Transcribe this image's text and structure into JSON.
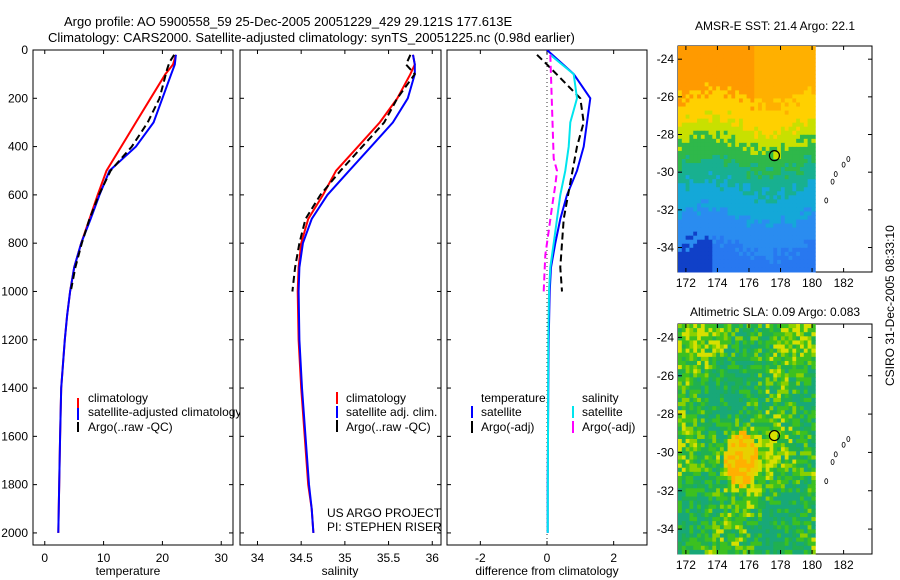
{
  "header": {
    "line1": "Argo profile: AO 5900558_59 25-Dec-2005 20051229_429 29.121S 177.613E",
    "line2": "Climatology: CARS2000. Satellite-adjusted climatology: synTS_20051225.nc (0.98d earlier)"
  },
  "stamp": "CSIRO 31-Dec-2005 08:33:10",
  "colors": {
    "climatology": "#ff0000",
    "satellite": "#0000ff",
    "argo": "#000000",
    "salinity_satellite": "#00e5ee",
    "salinity_argo": "#ff00ff"
  },
  "chart_data": [
    {
      "type": "line",
      "panel": "temperature",
      "xlabel": "temperature",
      "ylabel": "",
      "xlim": [
        -2,
        32
      ],
      "ylim": [
        2050,
        0
      ],
      "y_reversed": true,
      "xticks": [
        0,
        10,
        20,
        30
      ],
      "yticks": [
        0,
        200,
        400,
        600,
        800,
        1000,
        1200,
        1400,
        1600,
        1800,
        2000
      ],
      "legend": [
        "climatology",
        "satellite-adjusted climatology",
        "Argo(..raw -QC)"
      ],
      "legend_placement": "lower-right",
      "series": [
        {
          "name": "climatology",
          "color": "#ff0000",
          "style": "solid",
          "x": [
            22.3,
            21.8,
            20.5,
            18.0,
            15.5,
            13.0,
            10.5,
            9.0,
            7.6,
            6.2,
            5.0,
            4.3,
            3.8,
            3.4,
            3.1,
            2.8,
            2.6,
            2.45,
            2.3
          ],
          "y": [
            20,
            60,
            100,
            200,
            300,
            400,
            500,
            600,
            700,
            800,
            900,
            1000,
            1100,
            1200,
            1300,
            1400,
            1600,
            1800,
            2000
          ]
        },
        {
          "name": "satellite-adjusted climatology",
          "color": "#0000ff",
          "style": "solid",
          "x": [
            22.3,
            22.1,
            21.5,
            20.0,
            18.5,
            15.5,
            11.0,
            9.3,
            7.8,
            6.2,
            5.0,
            4.3,
            3.8,
            3.4,
            3.1,
            2.8,
            2.6,
            2.45,
            2.3
          ],
          "y": [
            20,
            60,
            100,
            200,
            300,
            400,
            500,
            600,
            700,
            800,
            900,
            1000,
            1100,
            1200,
            1300,
            1400,
            1600,
            1800,
            2000
          ]
        },
        {
          "name": "Argo(..raw -QC)",
          "color": "#000000",
          "style": "dashed",
          "x": [
            22.0,
            21.2,
            20.8,
            19.5,
            17.5,
            14.8,
            11.2,
            9.2,
            7.6,
            6.3,
            5.2,
            4.5
          ],
          "y": [
            20,
            50,
            80,
            200,
            300,
            400,
            500,
            600,
            700,
            800,
            900,
            990
          ]
        }
      ]
    },
    {
      "type": "line",
      "panel": "salinity",
      "xlabel": "salinity",
      "ylabel": "",
      "xlim": [
        33.8,
        36.1
      ],
      "ylim": [
        2050,
        0
      ],
      "y_reversed": true,
      "xticks": [
        34,
        34.5,
        35,
        35.5,
        36
      ],
      "legend": [
        "climatology",
        "satellite adj. clim.",
        "Argo(..raw -QC)"
      ],
      "legend_placement": "lower-right",
      "annotation": [
        "US ARGO PROJECT",
        "PI: STEPHEN RISER"
      ],
      "series": [
        {
          "name": "climatology",
          "color": "#ff0000",
          "style": "solid",
          "x": [
            35.78,
            35.8,
            35.75,
            35.6,
            35.4,
            35.15,
            34.9,
            34.75,
            34.58,
            34.5,
            34.47,
            34.46,
            34.47,
            34.5,
            34.54,
            34.58,
            34.62,
            34.64
          ],
          "y": [
            20,
            60,
            100,
            200,
            300,
            400,
            500,
            600,
            700,
            800,
            900,
            1000,
            1200,
            1400,
            1600,
            1800,
            1900,
            2000
          ]
        },
        {
          "name": "satellite adj. clim.",
          "color": "#0000ff",
          "style": "solid",
          "x": [
            35.78,
            35.8,
            35.8,
            35.72,
            35.55,
            35.3,
            35.05,
            34.8,
            34.62,
            34.52,
            34.48,
            34.47,
            34.48,
            34.51,
            34.55,
            34.59,
            34.62,
            34.64
          ],
          "y": [
            20,
            60,
            100,
            200,
            300,
            400,
            500,
            600,
            700,
            800,
            900,
            1000,
            1200,
            1400,
            1600,
            1800,
            1900,
            2000
          ]
        },
        {
          "name": "Argo(..raw -QC)",
          "color": "#000000",
          "style": "dashed",
          "x": [
            35.75,
            35.7,
            35.8,
            35.6,
            35.45,
            35.2,
            34.95,
            34.72,
            34.55,
            34.48,
            34.43,
            34.4
          ],
          "y": [
            20,
            60,
            100,
            200,
            300,
            400,
            500,
            600,
            700,
            800,
            900,
            1000
          ]
        }
      ]
    },
    {
      "type": "line",
      "panel": "difference",
      "xlabel": "difference from climatology",
      "ylabel": "",
      "xlim": [
        -3,
        3
      ],
      "ylim": [
        2050,
        0
      ],
      "y_reversed": true,
      "xticks": [
        -2,
        0,
        2
      ],
      "legend": [
        "temperature",
        "satellite",
        "Argo(-adj)",
        "salinity",
        "satellite",
        "Argo(-adj)"
      ],
      "legend_placement": "lower-center",
      "series": [
        {
          "name": "temperature satellite",
          "color": "#0000ff",
          "style": "solid",
          "x": [
            0.0,
            0.8,
            1.3,
            1.2,
            1.1,
            0.9,
            0.6,
            0.4,
            0.25,
            0.12,
            0.08,
            0.05,
            0.04,
            0.03,
            0.02,
            0.02
          ],
          "y": [
            0,
            100,
            200,
            300,
            400,
            500,
            600,
            700,
            800,
            900,
            1000,
            1200,
            1400,
            1600,
            1800,
            2000
          ]
        },
        {
          "name": "temperature Argo(-adj)",
          "color": "#000000",
          "style": "dashed",
          "x": [
            -0.3,
            0.0,
            1.0,
            1.1,
            0.9,
            0.7,
            0.5,
            0.45,
            0.4,
            0.45
          ],
          "y": [
            20,
            60,
            200,
            300,
            400,
            550,
            700,
            800,
            900,
            1000
          ]
        },
        {
          "name": "salinity satellite",
          "color": "#00e5ee",
          "style": "solid",
          "x": [
            0.1,
            0.8,
            0.9,
            0.7,
            0.65,
            0.55,
            0.4,
            0.3,
            0.2,
            0.1,
            0.06,
            0.04,
            0.03,
            0.02
          ],
          "y": [
            20,
            100,
            200,
            300,
            400,
            500,
            600,
            700,
            800,
            900,
            1000,
            1200,
            1600,
            2000
          ]
        },
        {
          "name": "salinity Argo(-adj)",
          "color": "#ff00ff",
          "style": "dashed",
          "x": [
            0.1,
            0.2,
            0.3,
            0.25,
            0.15,
            0.05,
            -0.05,
            -0.1
          ],
          "y": [
            20,
            450,
            500,
            560,
            650,
            750,
            850,
            1000
          ]
        }
      ]
    },
    {
      "type": "heatmap",
      "panel": "AMSR-E SST",
      "title": "AMSR-E SST: 21.4 Argo: 22.1",
      "xlim": [
        171.5,
        183.8
      ],
      "ylim": [
        -35.3,
        -23.3
      ],
      "xticks": [
        172,
        174,
        176,
        178,
        180,
        182
      ],
      "yticks": [
        -24,
        -26,
        -28,
        -30,
        -32,
        -34
      ],
      "argo_position": [
        177.613,
        -29.121
      ],
      "data_extent_lon": [
        171.5,
        180.2
      ]
    },
    {
      "type": "heatmap",
      "panel": "Altimetric SLA",
      "title": "Altimetric SLA: 0.09 Argo: 0.083",
      "xlim": [
        171.5,
        183.8
      ],
      "ylim": [
        -35.3,
        -23.3
      ],
      "xticks": [
        172,
        174,
        176,
        178,
        180,
        182
      ],
      "yticks": [
        -24,
        -26,
        -28,
        -30,
        -32,
        -34
      ],
      "argo_position": [
        177.613,
        -29.121
      ],
      "data_extent_lon": [
        171.5,
        180.2
      ]
    }
  ]
}
